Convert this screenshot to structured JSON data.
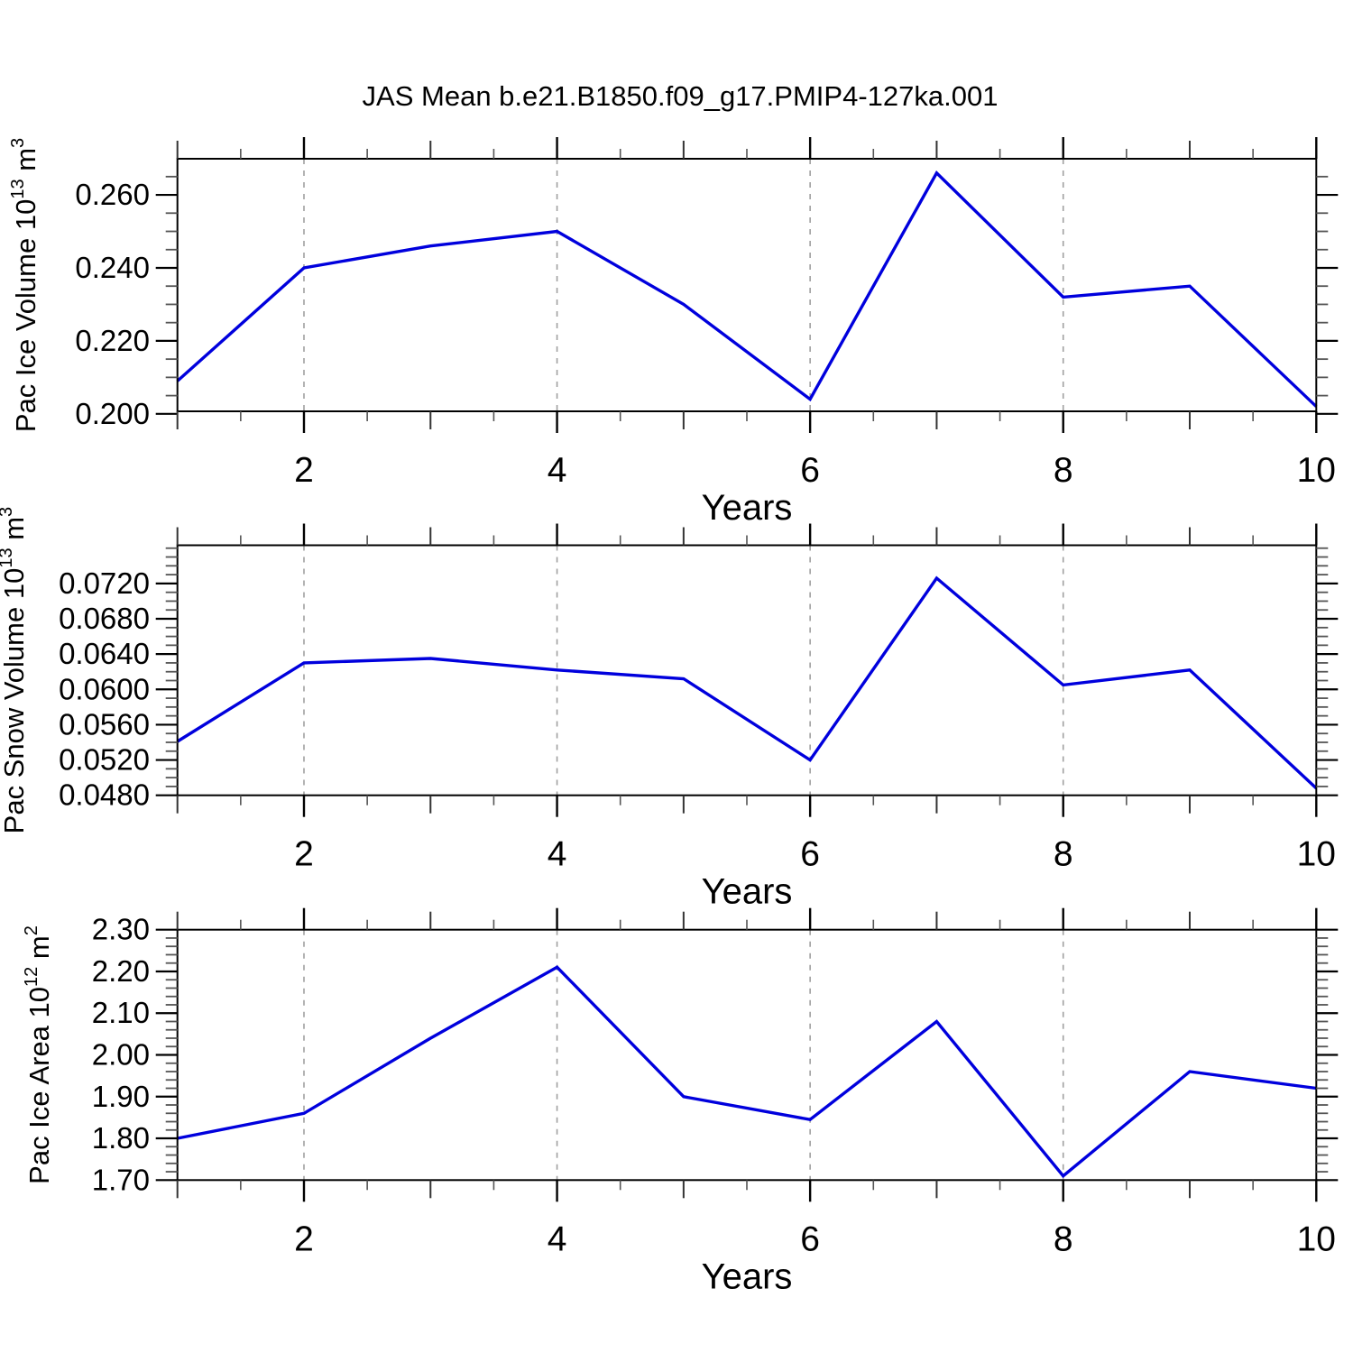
{
  "title": "JAS Mean b.e21.B1850.f09_g17.PMIP4-127ka.001",
  "line_color": "#0000dd",
  "grid_color": "#a0a0a0",
  "frame_color": "#000000",
  "x_axis": {
    "label": "Years",
    "range": [
      1,
      10
    ],
    "ticks": [
      2,
      4,
      6,
      8,
      10
    ],
    "tick_labels": [
      "2",
      "4",
      "6",
      "8",
      "10"
    ],
    "minor_step": 0.5,
    "gridline_years": [
      2,
      4,
      6,
      8
    ]
  },
  "chart_data": [
    {
      "type": "line",
      "name": "pac-ice-volume",
      "ylabel_text": "Pac Ice Volume 10^13 m^3",
      "ylabel_segments": [
        {
          "t": "Pac Ice Volume 10"
        },
        {
          "t": "13",
          "sup": true
        },
        {
          "t": " m"
        },
        {
          "t": "3",
          "sup": true
        }
      ],
      "x": [
        1,
        2,
        3,
        4,
        5,
        6,
        7,
        8,
        9,
        10
      ],
      "values": [
        0.209,
        0.24,
        0.246,
        0.25,
        0.23,
        0.204,
        0.266,
        0.232,
        0.235,
        0.202
      ],
      "ylim": [
        0.2007,
        0.2699
      ],
      "y_major": [
        0.2,
        0.22,
        0.24,
        0.26
      ],
      "y_major_labels": [
        "0.200",
        "0.220",
        "0.240",
        "0.260"
      ],
      "y_minor_step": 0.005,
      "xlabel": "Years",
      "grid": "vertical-dashed",
      "legend": "none"
    },
    {
      "type": "line",
      "name": "pac-snow-volume",
      "ylabel_text": "Pac Snow Volume 10^13 m^3",
      "ylabel_segments": [
        {
          "t": "Pac Snow Volume 10"
        },
        {
          "t": "13",
          "sup": true
        },
        {
          "t": " m"
        },
        {
          "t": "3",
          "sup": true
        }
      ],
      "x": [
        1,
        2,
        3,
        4,
        5,
        6,
        7,
        8,
        9,
        10
      ],
      "values": [
        0.0541,
        0.063,
        0.0635,
        0.0622,
        0.0612,
        0.052,
        0.0726,
        0.0605,
        0.0622,
        0.0488
      ],
      "ylim": [
        0.048,
        0.07633
      ],
      "y_major": [
        0.048,
        0.052,
        0.056,
        0.06,
        0.064,
        0.068,
        0.072
      ],
      "y_major_labels": [
        "0.0480",
        "0.0520",
        "0.0560",
        "0.0600",
        "0.0640",
        "0.0680",
        "0.0720"
      ],
      "y_minor_step": 0.001,
      "xlabel": "Years",
      "grid": "vertical-dashed",
      "legend": "none"
    },
    {
      "type": "line",
      "name": "pac-ice-area",
      "ylabel_text": "Pac Ice Area 10^12 m^2",
      "ylabel_segments": [
        {
          "t": "Pac Ice Area 10"
        },
        {
          "t": "12",
          "sup": true
        },
        {
          "t": " m"
        },
        {
          "t": "2",
          "sup": true
        }
      ],
      "x": [
        1,
        2,
        3,
        4,
        5,
        6,
        7,
        8,
        9,
        10
      ],
      "values": [
        1.8,
        1.86,
        2.04,
        2.21,
        1.9,
        1.845,
        2.08,
        1.71,
        1.96,
        1.92
      ],
      "ylim": [
        1.7,
        2.3
      ],
      "y_major": [
        1.7,
        1.8,
        1.9,
        2.0,
        2.1,
        2.2,
        2.3
      ],
      "y_major_labels": [
        "1.70",
        "1.80",
        "1.90",
        "2.00",
        "2.10",
        "2.20",
        "2.30"
      ],
      "y_minor_step": 0.02,
      "xlabel": "Years",
      "grid": "vertical-dashed",
      "legend": "none"
    }
  ]
}
